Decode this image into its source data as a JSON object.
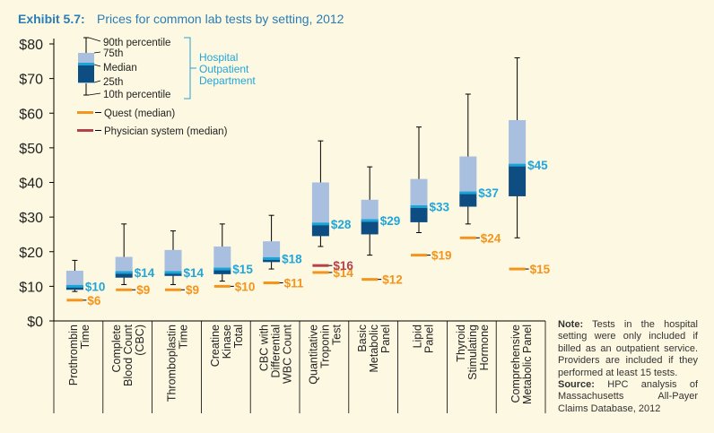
{
  "exhibit": {
    "label": "Exhibit 5.7:",
    "title": "Prices for common lab tests by setting, 2012"
  },
  "colors": {
    "accent": "#2a7db5",
    "outer_box": "#a8bfe0",
    "inner_box": "#0d4d82",
    "median": "#1aa5d6",
    "quest": "#f3941d",
    "physician": "#b5414a",
    "label_hosp": "#22a6d8",
    "label_quest": "#f3941d",
    "label_phys": "#b5414a"
  },
  "legend": {
    "p90": "90th percentile",
    "p75": "75th",
    "median": "Median",
    "p25": "25th",
    "p10": "10th percentile",
    "hospital_lines": [
      "Hospital",
      "Outpatient",
      "Department"
    ],
    "quest": "Quest (median)",
    "physician": "Physician system (median)"
  },
  "note": {
    "note_label": "Note:",
    "note_text": " Tests in the hospital setting were only included if billed as an outpatient service. Providers are included if they performed at least 15 tests.",
    "source_label": "Source:",
    "source_text": " HPC analysis of Massachusetts All-Payer Claims Database, 2012"
  },
  "chart_data": {
    "type": "box",
    "title": "Prices for common lab tests by setting, 2012",
    "ylim": [
      0,
      80
    ],
    "yticks": [
      "$0",
      "$10",
      "$20",
      "$30",
      "$40",
      "$50",
      "$60",
      "$70",
      "$80"
    ],
    "categories": [
      [
        "Prothrombin",
        "Time"
      ],
      [
        "Complete",
        "Blood Count",
        "(CBC)"
      ],
      [
        "Thromboplastin",
        "Time"
      ],
      [
        "Creatine",
        "Kinase",
        "Total"
      ],
      [
        "CBC with",
        "Differential",
        "WBC Count"
      ],
      [
        "Quantitative",
        "Troponin",
        "Test"
      ],
      [
        "Basic",
        "Metabolic",
        "Panel"
      ],
      [
        "Lipid",
        "Panel"
      ],
      [
        "Thyroid",
        "Stimulating",
        "Hormone"
      ],
      [
        "Comprehensive",
        "Metabolic Panel"
      ]
    ],
    "hospital": {
      "p10": [
        8.5,
        10.5,
        10.5,
        11.5,
        15,
        21.5,
        19,
        25.5,
        28,
        24
      ],
      "p25": [
        9,
        12.5,
        13,
        13.5,
        17,
        24.5,
        25,
        28.5,
        33,
        36
      ],
      "median": [
        10,
        14,
        14,
        15,
        18,
        28,
        29,
        33,
        37,
        45
      ],
      "p75": [
        14.5,
        18.5,
        20.5,
        21.5,
        23,
        40,
        35,
        41,
        47.5,
        58
      ],
      "p90": [
        17.5,
        28,
        26,
        28,
        30.5,
        52,
        44.5,
        56,
        65.5,
        76
      ],
      "labels": [
        "$10",
        "$14",
        "$14",
        "$15",
        "$18",
        "$28",
        "$29",
        "$33",
        "$37",
        "$45"
      ]
    },
    "quest": {
      "values": [
        6,
        9,
        9,
        10,
        11,
        14,
        12,
        19,
        24,
        15
      ],
      "labels": [
        "$6",
        "$9",
        "$9",
        "$10",
        "$11",
        "$14",
        "$12",
        "$19",
        "$24",
        "$15"
      ]
    },
    "physician": {
      "values": [
        null,
        null,
        null,
        null,
        null,
        16,
        null,
        null,
        null,
        null
      ],
      "labels": [
        "",
        "",
        "",
        "",
        "",
        "$16",
        "",
        "",
        "",
        ""
      ]
    }
  }
}
